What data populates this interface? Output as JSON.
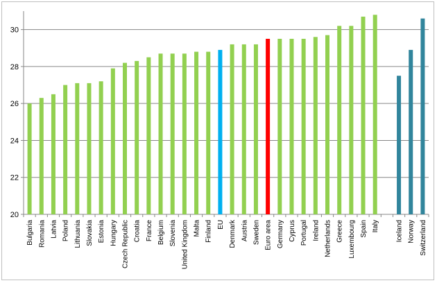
{
  "chart_data": {
    "type": "bar",
    "title": "",
    "xlabel": "",
    "ylabel": "",
    "ylim": [
      20,
      31
    ],
    "yticks": [
      20,
      22,
      24,
      26,
      28,
      30
    ],
    "grid": true,
    "legend": "none",
    "colors": {
      "member": "#92d050",
      "eu": "#00b0f0",
      "euro_area": "#ff0000",
      "other": "#31859c",
      "gridline": "#868686",
      "axis": "#868686"
    },
    "groups": [
      {
        "name": "",
        "points": [
          {
            "category": "Bulgaria",
            "value": 26.0,
            "kind": "member"
          },
          {
            "category": "Romania",
            "value": 26.3,
            "kind": "member"
          },
          {
            "category": "Latvia",
            "value": 26.5,
            "kind": "member"
          },
          {
            "category": "Poland",
            "value": 27.0,
            "kind": "member"
          },
          {
            "category": "Lithuania",
            "value": 27.1,
            "kind": "member"
          },
          {
            "category": "Slovakia",
            "value": 27.1,
            "kind": "member"
          },
          {
            "category": "Estonia",
            "value": 27.2,
            "kind": "member"
          },
          {
            "category": "Hungary",
            "value": 27.9,
            "kind": "member"
          },
          {
            "category": "Czech Republic",
            "value": 28.2,
            "kind": "member"
          },
          {
            "category": "Croatia",
            "value": 28.3,
            "kind": "member"
          },
          {
            "category": "France",
            "value": 28.5,
            "kind": "member"
          },
          {
            "category": "Belgium",
            "value": 28.7,
            "kind": "member"
          },
          {
            "category": "Slovenia",
            "value": 28.7,
            "kind": "member"
          },
          {
            "category": "United Kingdom",
            "value": 28.7,
            "kind": "member"
          },
          {
            "category": "Malta",
            "value": 28.8,
            "kind": "member"
          },
          {
            "category": "Finland",
            "value": 28.8,
            "kind": "member"
          },
          {
            "category": "EU",
            "value": 28.9,
            "kind": "eu"
          },
          {
            "category": "Denmark",
            "value": 29.2,
            "kind": "member"
          },
          {
            "category": "Austria",
            "value": 29.2,
            "kind": "member"
          },
          {
            "category": "Sweden",
            "value": 29.2,
            "kind": "member"
          },
          {
            "category": "Euro area",
            "value": 29.5,
            "kind": "euro_area"
          },
          {
            "category": "Germany",
            "value": 29.5,
            "kind": "member"
          },
          {
            "category": "Cyprus",
            "value": 29.5,
            "kind": "member"
          },
          {
            "category": "Portugal",
            "value": 29.5,
            "kind": "member"
          },
          {
            "category": "Ireland",
            "value": 29.6,
            "kind": "member"
          },
          {
            "category": "Netherlands",
            "value": 29.7,
            "kind": "member"
          },
          {
            "category": "Greece",
            "value": 30.2,
            "kind": "member"
          },
          {
            "category": "Luxembourg",
            "value": 30.2,
            "kind": "member"
          },
          {
            "category": "Spain",
            "value": 30.7,
            "kind": "member"
          },
          {
            "category": "Italy",
            "value": 30.8,
            "kind": "member"
          }
        ]
      },
      {
        "name": "",
        "points": [
          {
            "category": "Iceland",
            "value": 27.5,
            "kind": "other"
          },
          {
            "category": "Norway",
            "value": 28.9,
            "kind": "other"
          },
          {
            "category": "Switzerland",
            "value": 30.6,
            "kind": "other"
          }
        ]
      }
    ]
  }
}
